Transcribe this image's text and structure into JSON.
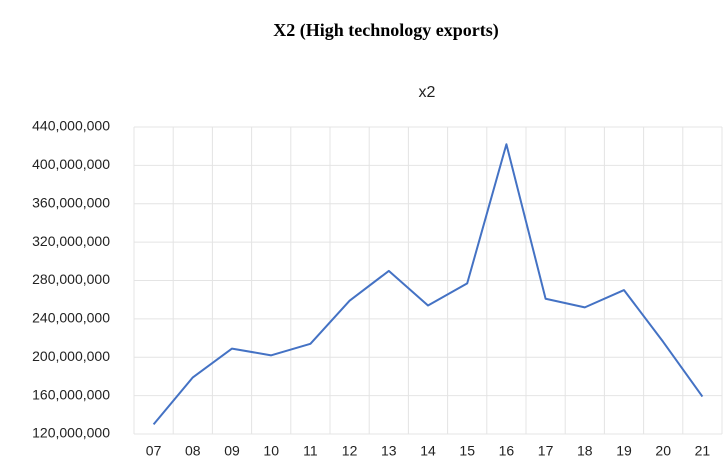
{
  "heading": "X2 (High technology exports)",
  "chart_data": {
    "type": "line",
    "title": "x2",
    "categories": [
      "07",
      "08",
      "09",
      "10",
      "11",
      "12",
      "13",
      "14",
      "15",
      "16",
      "17",
      "18",
      "19",
      "20",
      "21"
    ],
    "series": [
      {
        "name": "x2",
        "color": "#4472c4",
        "values": [
          130000000,
          179000000,
          209000000,
          202000000,
          214000000,
          259000000,
          290000000,
          254000000,
          277000000,
          422000000,
          261000000,
          252000000,
          270000000,
          216000000,
          159000000
        ]
      }
    ],
    "ylim": [
      120000000,
      440000000
    ],
    "yticks": [
      {
        "value": 120000000,
        "label": "120,000,000"
      },
      {
        "value": 160000000,
        "label": "160,000,000"
      },
      {
        "value": 200000000,
        "label": "200,000,000"
      },
      {
        "value": 240000000,
        "label": "240,000,000"
      },
      {
        "value": 280000000,
        "label": "280,000,000"
      },
      {
        "value": 320000000,
        "label": "320,000,000"
      },
      {
        "value": 360000000,
        "label": "360,000,000"
      },
      {
        "value": 400000000,
        "label": "400,000,000"
      },
      {
        "value": 440000000,
        "label": "440,000,000"
      }
    ],
    "grid": true
  }
}
